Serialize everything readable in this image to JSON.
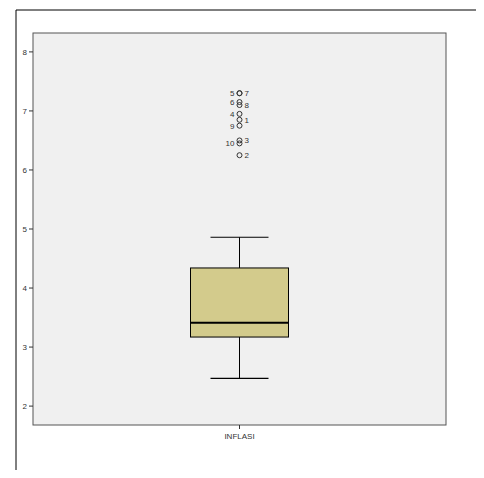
{
  "chart_data": {
    "type": "box",
    "categories": [
      "INFLASI"
    ],
    "color": "#d3cb8c",
    "box": {
      "min": 2.47,
      "q1": 3.17,
      "median": 3.41,
      "q3": 4.34,
      "max": 4.86
    },
    "outliers": [
      {
        "case": "5",
        "value": 7.3
      },
      {
        "case": "7",
        "value": 7.3
      },
      {
        "case": "6",
        "value": 7.15
      },
      {
        "case": "8",
        "value": 7.1
      },
      {
        "case": "4",
        "value": 6.95
      },
      {
        "case": "1",
        "value": 6.85
      },
      {
        "case": "9",
        "value": 6.75
      },
      {
        "case": "3",
        "value": 6.5
      },
      {
        "case": "10",
        "value": 6.45
      },
      {
        "case": "2",
        "value": 6.25
      }
    ],
    "ylim": [
      1.68,
      8.32
    ],
    "yticks": [
      2,
      3,
      4,
      5,
      6,
      7,
      8
    ]
  }
}
